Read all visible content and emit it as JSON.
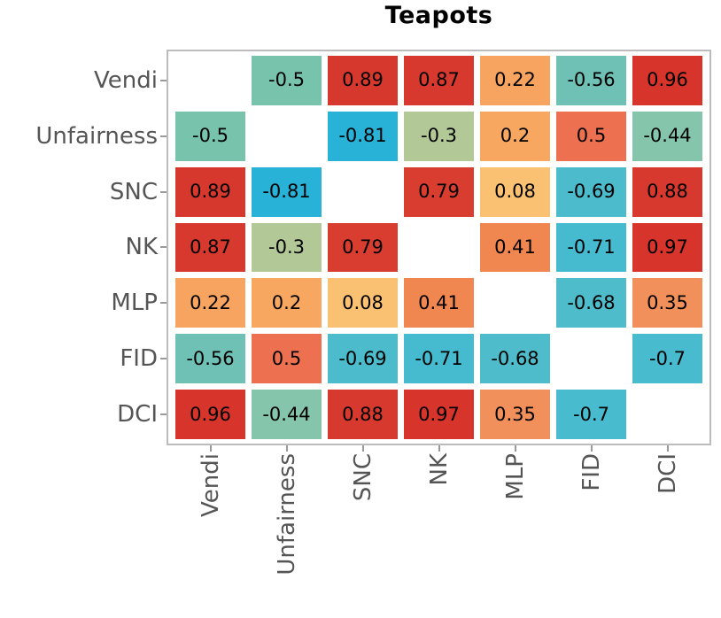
{
  "title": "Teapots",
  "chart_data": {
    "type": "heatmap",
    "title": "Teapots",
    "categories": [
      "Vendi",
      "Unfairness",
      "SNC",
      "NK",
      "MLP",
      "FID",
      "DCI"
    ],
    "matrix": [
      [
        null,
        -0.5,
        0.89,
        0.87,
        0.22,
        -0.56,
        0.96
      ],
      [
        -0.5,
        null,
        -0.81,
        -0.3,
        0.2,
        0.5,
        -0.44
      ],
      [
        0.89,
        -0.81,
        null,
        0.79,
        0.08,
        -0.69,
        0.88
      ],
      [
        0.87,
        -0.3,
        0.79,
        null,
        0.41,
        -0.71,
        0.97
      ],
      [
        0.22,
        0.2,
        0.08,
        0.41,
        null,
        -0.68,
        0.35
      ],
      [
        -0.56,
        0.5,
        -0.69,
        -0.71,
        -0.68,
        null,
        -0.7
      ],
      [
        0.96,
        -0.44,
        0.88,
        0.97,
        0.35,
        -0.7,
        null
      ]
    ],
    "value_range": [
      -1,
      1
    ],
    "diagonal": "blank",
    "legend": "none",
    "grid_line_color": "#ffffff",
    "axis_spine_color": "#bcbcbc",
    "tick_label_color": "#555555",
    "cell_text_color": "#000000",
    "color_stops": [
      {
        "v": -0.81,
        "c": "#29b2d8"
      },
      {
        "v": -0.7,
        "c": "#49bbce"
      },
      {
        "v": -0.56,
        "c": "#6ec1b4"
      },
      {
        "v": -0.5,
        "c": "#77c3ac"
      },
      {
        "v": -0.44,
        "c": "#85c5ab"
      },
      {
        "v": -0.3,
        "c": "#b2c897"
      },
      {
        "v": 0.08,
        "c": "#fac173"
      },
      {
        "v": 0.2,
        "c": "#f8a761"
      },
      {
        "v": 0.35,
        "c": "#f1905a"
      },
      {
        "v": 0.41,
        "c": "#f08650"
      },
      {
        "v": 0.5,
        "c": "#ed7150"
      },
      {
        "v": 0.79,
        "c": "#d93d30"
      },
      {
        "v": 0.89,
        "c": "#d7382e"
      },
      {
        "v": 0.97,
        "c": "#d7342c"
      }
    ]
  }
}
